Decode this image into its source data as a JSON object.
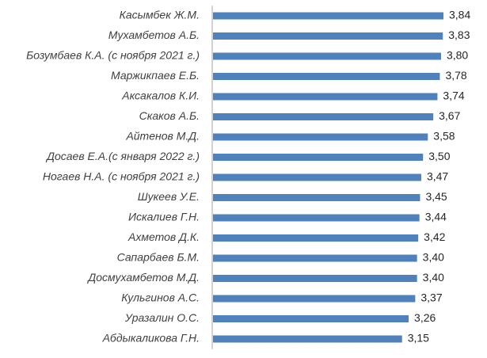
{
  "chart_data": {
    "type": "bar",
    "orientation": "horizontal",
    "bar_color": "#4f81bd",
    "grid": false,
    "legend": "none",
    "xlim": [
      0,
      3.84
    ],
    "categories": [
      "Касымбек Ж.М.",
      "Мухамбетов А.Б.",
      "Бозумбаев К.А. (с ноября 2021 г.)",
      "Маржикпаев Е.Б.",
      "Аксакалов К.И.",
      "Скаков А.Б.",
      "Айтенов М.Д.",
      "Досаев Е.А.(с января 2022 г.)",
      "Ногаев Н.А. (с ноября 2021 г.)",
      "Шукеев У.Е.",
      "Искалиев Г.Н.",
      "Ахметов Д.К.",
      "Сапарбаев Б.М.",
      "Досмухамбетов М.Д.",
      "Кульгинов А.С.",
      "Уразалин О.С.",
      "Абдыкаликова Г.Н."
    ],
    "values": [
      3.84,
      3.83,
      3.8,
      3.78,
      3.74,
      3.67,
      3.58,
      3.5,
      3.47,
      3.45,
      3.44,
      3.42,
      3.4,
      3.4,
      3.37,
      3.26,
      3.15
    ],
    "value_labels": [
      "3,84",
      "3,83",
      "3,80",
      "3,78",
      "3,74",
      "3,67",
      "3,58",
      "3,50",
      "3,47",
      "3,45",
      "3,44",
      "3,42",
      "3,40",
      "3,40",
      "3,37",
      "3,26",
      "3,15"
    ]
  }
}
